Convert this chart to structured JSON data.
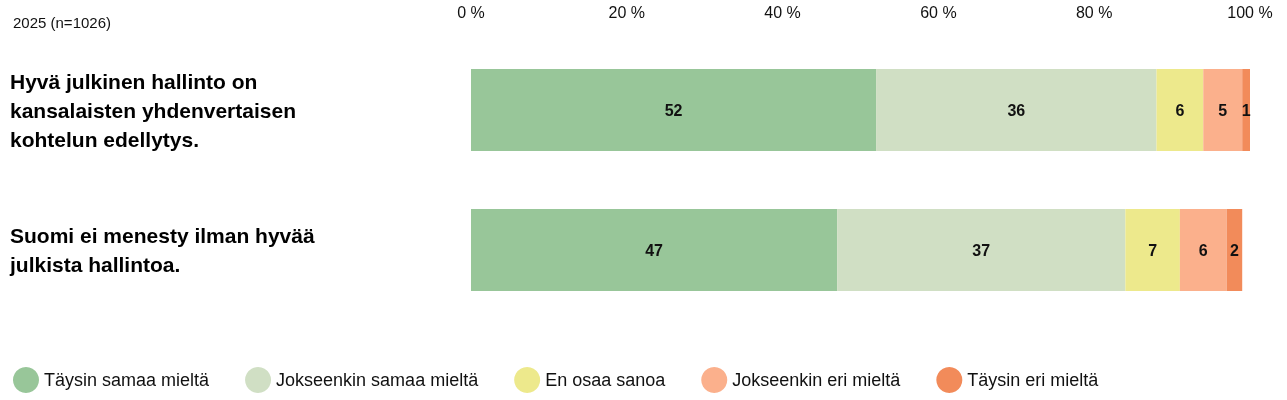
{
  "chart_data": {
    "type": "bar",
    "orientation": "horizontal",
    "stacked": true,
    "title": "2025 (n=1026)",
    "categories": [
      "Hyvä julkinen hallinto on kansalaisten yhdenvertaisen kohtelun edellytys.",
      "Suomi ei menesty ilman hyvää julkista hallintoa."
    ],
    "series": [
      {
        "name": "Täysin samaa mieltä",
        "color": "#98c699",
        "values": [
          52,
          47
        ]
      },
      {
        "name": "Jokseenkin samaa mieltä",
        "color": "#d0dfc4",
        "values": [
          36,
          37
        ]
      },
      {
        "name": "En osaa sanoa",
        "color": "#ede98c",
        "values": [
          6,
          7
        ]
      },
      {
        "name": "Jokseenkin eri mieltä",
        "color": "#fbb08c",
        "values": [
          5,
          6
        ]
      },
      {
        "name": "Täysin eri mieltä",
        "color": "#f28b5a",
        "values": [
          1,
          2
        ]
      }
    ],
    "xlim": [
      0,
      100
    ],
    "xticks": [
      {
        "value": 0,
        "label": "0 %"
      },
      {
        "value": 20,
        "label": "20 %"
      },
      {
        "value": 40,
        "label": "40 %"
      },
      {
        "value": 60,
        "label": "60 %"
      },
      {
        "value": 80,
        "label": "80 %"
      },
      {
        "value": 100,
        "label": "100 %"
      }
    ],
    "data_labels": true,
    "legend": "bottom"
  }
}
